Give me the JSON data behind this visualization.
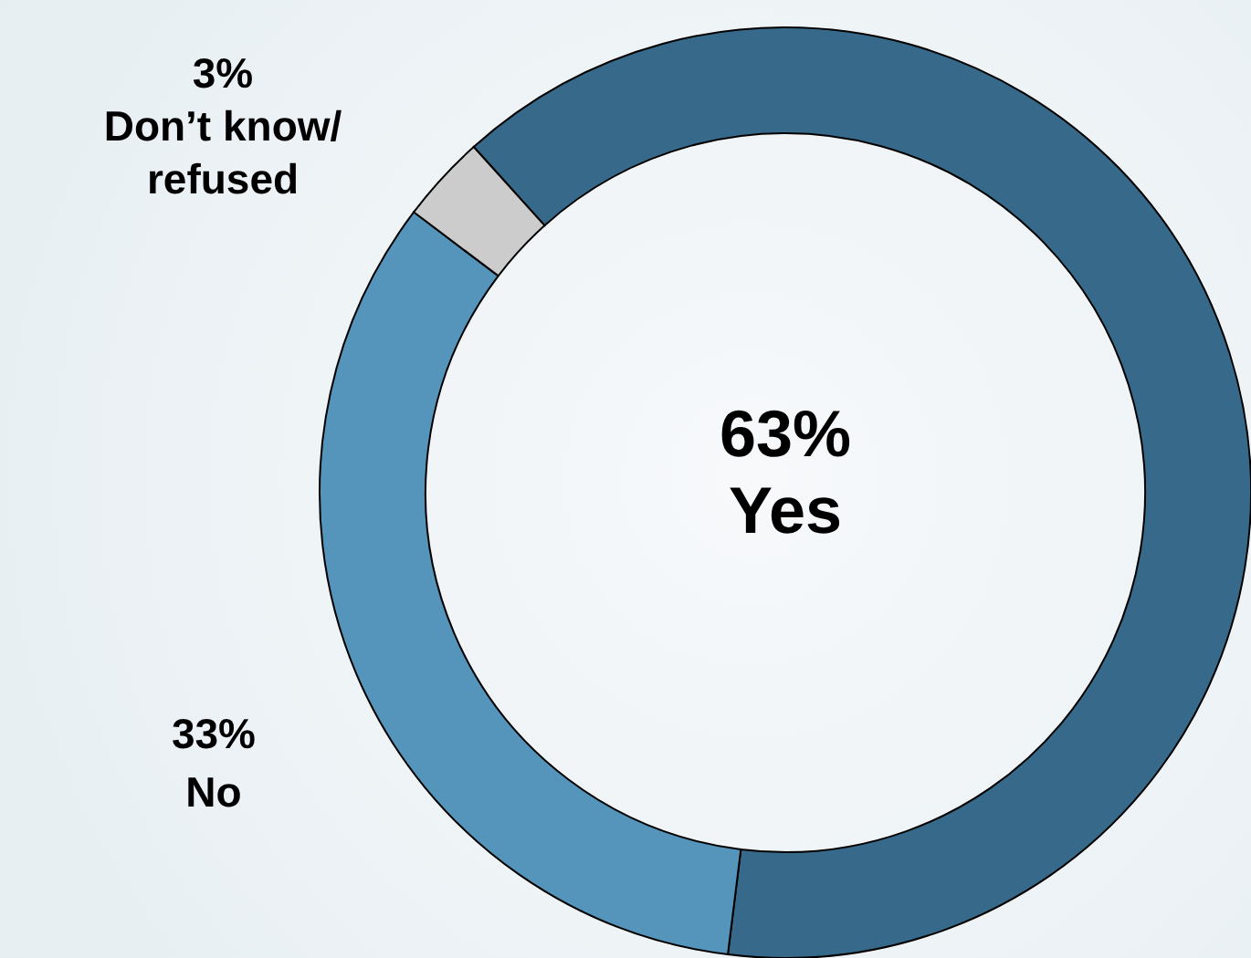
{
  "chart_data": {
    "type": "donut",
    "categories": [
      "Yes",
      "No",
      "Don’t know/ refused"
    ],
    "values": [
      63,
      33,
      3
    ],
    "colors": [
      "#376a8a",
      "#5595bb",
      "#cccccc"
    ],
    "value_labels": [
      "63%",
      "33%",
      "3%"
    ],
    "legend": false
  }
}
